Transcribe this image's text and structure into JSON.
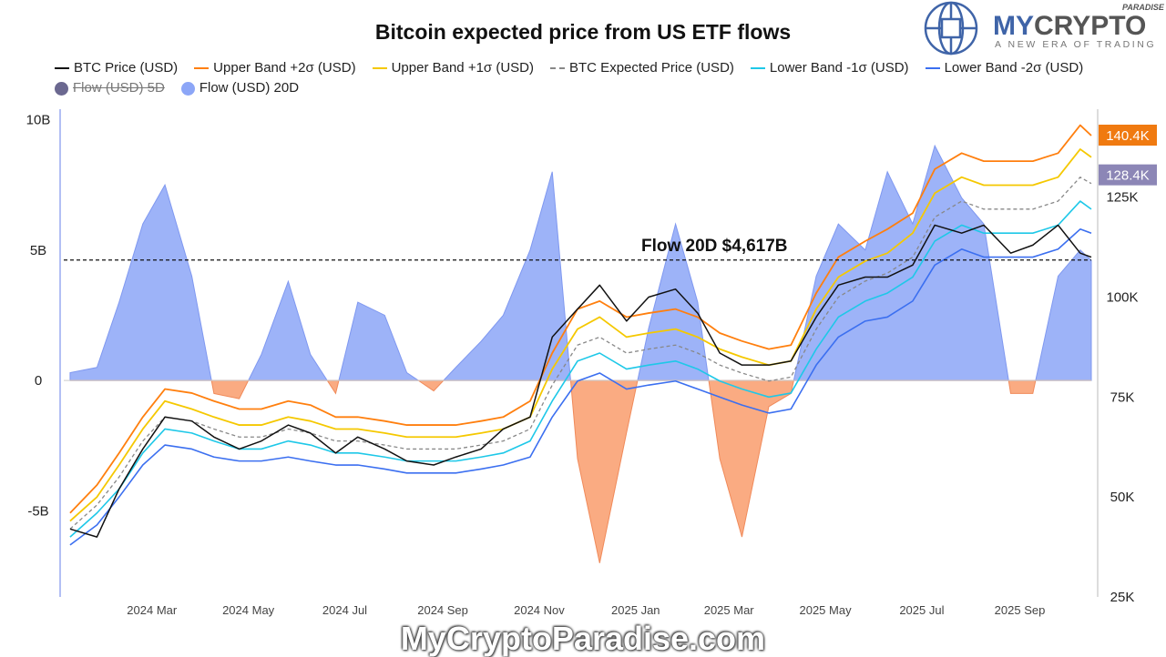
{
  "chart_data": {
    "type": "line",
    "title": "Bitcoin expected price from US ETF flows",
    "legend": [
      {
        "name": "BTC Price (USD)",
        "color": "#111111",
        "style": "line",
        "hidden": false
      },
      {
        "name": "Upper Band +2σ (USD)",
        "color": "#ff7f0e",
        "style": "line",
        "hidden": false
      },
      {
        "name": "Upper Band +1σ (USD)",
        "color": "#f5c800",
        "style": "line",
        "hidden": false
      },
      {
        "name": "BTC Expected Price (USD)",
        "color": "#888888",
        "style": "dashed",
        "hidden": false
      },
      {
        "name": "Lower Band -1σ (USD)",
        "color": "#1ec8e8",
        "style": "line",
        "hidden": false
      },
      {
        "name": "Lower Band -2σ (USD)",
        "color": "#3b6ff0",
        "style": "line",
        "hidden": false
      },
      {
        "name": "Flow (USD) 5D",
        "color": "#6b6890",
        "style": "dot",
        "hidden": true
      },
      {
        "name": "Flow (USD) 20D",
        "color": "#8ca6f7",
        "style": "dot",
        "hidden": false
      }
    ],
    "legend_placement": "top",
    "x_ticks": [
      "2024 Mar",
      "2024 May",
      "2024 Jul",
      "2024 Sep",
      "2024 Nov",
      "2025 Jan",
      "2025 Mar",
      "2025 May",
      "2025 Jul",
      "2025 Sep"
    ],
    "x_tick_dates": [
      "2024-03-01",
      "2024-05-01",
      "2024-07-01",
      "2024-09-01",
      "2024-11-01",
      "2025-01-01",
      "2025-03-01",
      "2025-05-01",
      "2025-07-01",
      "2025-09-01"
    ],
    "x_range": [
      "2024-01-11",
      "2025-10-22"
    ],
    "left_axis": {
      "ticks": [
        "10B",
        "5B",
        "0",
        "-5B"
      ],
      "tick_values": [
        10,
        5,
        0,
        -5
      ],
      "range": [
        -8.3,
        10.4
      ],
      "unit": "billion USD"
    },
    "right_axis": {
      "ticks": [
        "125K",
        "100K",
        "75K",
        "50K",
        "25K"
      ],
      "tick_values": [
        125,
        100,
        75,
        50,
        25
      ],
      "range": [
        25,
        147
      ],
      "unit": "thousand USD"
    },
    "reference_line": {
      "value": 4.617,
      "label": "Flow 20D $4,617B"
    },
    "value_labels": [
      {
        "text": "140.4K",
        "value": 140.4,
        "color": "#f07a10"
      },
      {
        "text": "128.4K",
        "value": 128.4,
        "color": "#8c86b6"
      }
    ],
    "dates": [
      "2024-01-15",
      "2024-02-01",
      "2024-02-15",
      "2024-03-01",
      "2024-03-15",
      "2024-04-01",
      "2024-04-15",
      "2024-05-01",
      "2024-05-15",
      "2024-06-01",
      "2024-06-15",
      "2024-07-01",
      "2024-07-15",
      "2024-08-01",
      "2024-08-15",
      "2024-09-01",
      "2024-09-15",
      "2024-10-01",
      "2024-10-15",
      "2024-11-01",
      "2024-11-15",
      "2024-12-01",
      "2024-12-15",
      "2025-01-01",
      "2025-01-15",
      "2025-02-01",
      "2025-02-15",
      "2025-03-01",
      "2025-03-15",
      "2025-04-01",
      "2025-04-15",
      "2025-05-01",
      "2025-05-15",
      "2025-06-01",
      "2025-06-15",
      "2025-07-01",
      "2025-07-15",
      "2025-08-01",
      "2025-08-15",
      "2025-09-01",
      "2025-09-15",
      "2025-10-01",
      "2025-10-15",
      "2025-10-22"
    ],
    "series": [
      {
        "name": "BTC Price (USD)",
        "axis": "right",
        "values": [
          42,
          40,
          52,
          62,
          70,
          69,
          65,
          62,
          64,
          68,
          66,
          61,
          65,
          62,
          59,
          58,
          60,
          62,
          67,
          70,
          90,
          97,
          103,
          94,
          100,
          102,
          96,
          86,
          83,
          83,
          84,
          95,
          103,
          105,
          105,
          108,
          118,
          116,
          118,
          111,
          113,
          118,
          111,
          110
        ]
      },
      {
        "name": "Upper Band +2σ (USD)",
        "axis": "right",
        "values": [
          46,
          53,
          61,
          70,
          77,
          76,
          74,
          72,
          72,
          74,
          73,
          70,
          70,
          69,
          68,
          68,
          68,
          69,
          70,
          74,
          86,
          97,
          99,
          95,
          96,
          97,
          95,
          91,
          89,
          87,
          88,
          101,
          110,
          114,
          117,
          121,
          132,
          136,
          134,
          134,
          134,
          136,
          143,
          140.4
        ]
      },
      {
        "name": "Upper Band +1σ (USD)",
        "axis": "right",
        "values": [
          44,
          50,
          58,
          67,
          74,
          72,
          70,
          68,
          68,
          70,
          69,
          67,
          67,
          66,
          65,
          65,
          65,
          66,
          67,
          70,
          82,
          92,
          95,
          90,
          91,
          92,
          90,
          87,
          85,
          83,
          84,
          97,
          105,
          109,
          111,
          116,
          126,
          130,
          128,
          128,
          128,
          130,
          137,
          135
        ]
      },
      {
        "name": "BTC Expected Price (USD)",
        "axis": "right",
        "values": [
          42,
          48,
          55,
          64,
          70,
          69,
          67,
          65,
          65,
          67,
          66,
          64,
          64,
          63,
          62,
          62,
          62,
          63,
          64,
          67,
          78,
          88,
          90,
          86,
          87,
          88,
          86,
          83,
          81,
          79,
          80,
          92,
          100,
          104,
          106,
          110,
          120,
          124,
          122,
          122,
          122,
          124,
          130,
          128.4
        ]
      },
      {
        "name": "Lower Band -1σ (USD)",
        "axis": "right",
        "values": [
          40,
          46,
          52,
          61,
          67,
          66,
          64,
          62,
          62,
          64,
          63,
          61,
          61,
          60,
          59,
          59,
          59,
          60,
          61,
          64,
          74,
          84,
          86,
          82,
          83,
          84,
          82,
          79,
          77,
          75,
          76,
          87,
          95,
          99,
          101,
          105,
          114,
          118,
          116,
          116,
          116,
          118,
          124,
          122
        ]
      },
      {
        "name": "Lower Band -2σ (USD)",
        "axis": "right",
        "values": [
          38,
          43,
          50,
          58,
          63,
          62,
          60,
          59,
          59,
          60,
          59,
          58,
          58,
          57,
          56,
          56,
          56,
          57,
          58,
          60,
          70,
          79,
          81,
          77,
          78,
          79,
          77,
          75,
          73,
          71,
          72,
          83,
          90,
          94,
          95,
          99,
          108,
          112,
          110,
          110,
          110,
          112,
          117,
          116
        ]
      },
      {
        "name": "Flow (USD) 20D",
        "axis": "left",
        "values": [
          0.3,
          0.5,
          3,
          6,
          7.5,
          4,
          -0.5,
          -0.7,
          1,
          3.8,
          1,
          -0.5,
          3,
          2.5,
          0.3,
          -0.4,
          0.5,
          1.5,
          2.5,
          5,
          8,
          -3,
          -7,
          -2,
          2,
          6,
          3,
          -3,
          -6,
          -1,
          -0.5,
          4,
          6,
          5,
          8,
          6,
          9,
          7,
          6,
          -0.5,
          -0.5,
          4,
          5,
          4.6
        ]
      }
    ],
    "colors": {
      "positive_flow": "#8ca6f7",
      "negative_flow": "#f9a274"
    }
  },
  "logo": {
    "brand_a": "MY",
    "brand_b": "CRYPTO",
    "brand_c": "PARADISE",
    "tagline": "A NEW ERA OF TRADING"
  },
  "watermark": "MyCryptoParadise.com"
}
